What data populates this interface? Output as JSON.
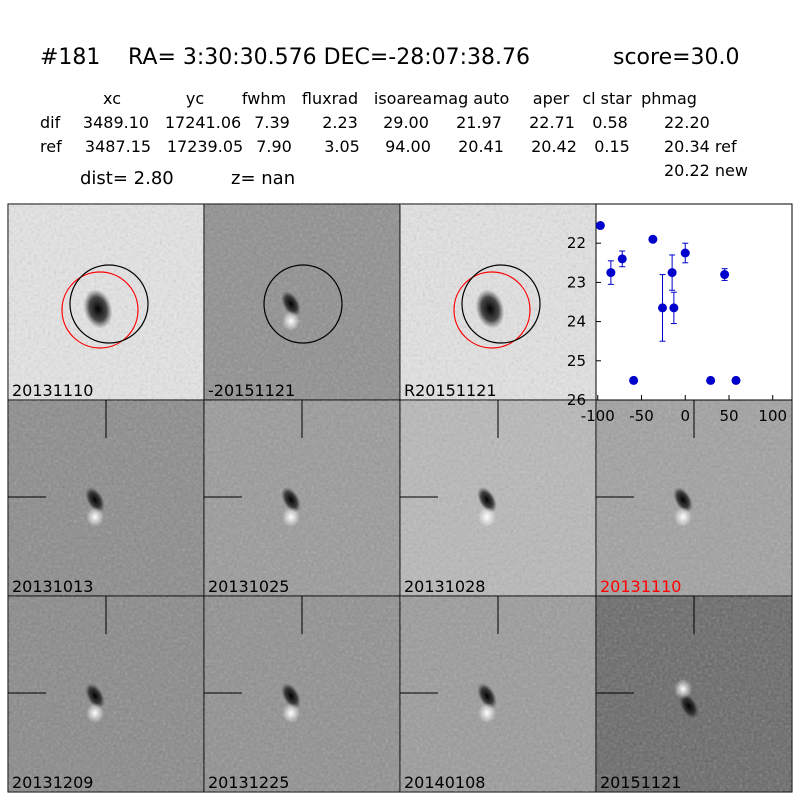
{
  "header": {
    "id": "#181",
    "coords": "RA= 3:30:30.576 DEC=-28:07:38.76",
    "score": "score=30.0"
  },
  "table": {
    "columns": [
      "xc",
      "yc",
      "fwhm",
      "fluxrad",
      "isoarea",
      "mag auto",
      "aper",
      "cl star",
      "phmag"
    ],
    "rows": [
      [
        "dif",
        "3489.10",
        "17241.06",
        "7.39",
        "2.23",
        "29.00",
        "21.97",
        "22.71",
        "0.58",
        "22.20"
      ],
      [
        "ref",
        "3487.15",
        "17239.05",
        "7.90",
        "3.05",
        "94.00",
        "20.41",
        "20.42",
        "0.15",
        "20.34 ref"
      ]
    ],
    "extra": "20.22 new"
  },
  "dist": "dist=  2.80",
  "z": "z=   nan",
  "panels": [
    "20131110",
    "-20151121",
    "R20151121",
    "20131013",
    "20131025",
    "20131028",
    "20131110",
    "20131209",
    "20131225",
    "20140108",
    "20151121"
  ],
  "chart_data": {
    "type": "scatter",
    "x": [
      -97,
      -85,
      -72,
      -59,
      -37,
      -26,
      -15,
      -13,
      0,
      45,
      29,
      58
    ],
    "series": [
      {
        "color": "#0000cc",
        "values": [
          21.55,
          22.75,
          22.4,
          25.5,
          21.9,
          23.65,
          22.75,
          23.65,
          22.25,
          22.8,
          25.5,
          25.5
        ],
        "errors": [
          null,
          0.3,
          0.2,
          null,
          null,
          0.85,
          0.45,
          0.4,
          0.25,
          0.15,
          null,
          null
        ]
      }
    ],
    "xlim": [
      -102,
      122
    ],
    "ylim": [
      26,
      21
    ],
    "xticks": [
      -100,
      -50,
      0,
      50,
      100
    ],
    "yticks": [
      22,
      23,
      24,
      25,
      26
    ]
  }
}
